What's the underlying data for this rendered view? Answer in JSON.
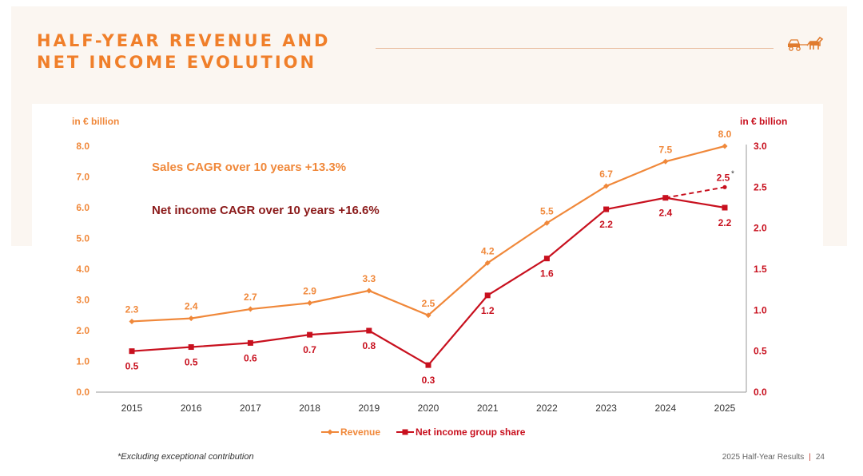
{
  "slide": {
    "title_line1": "HALF-YEAR REVENUE AND",
    "title_line2": "NET INCOME EVOLUTION",
    "footnote": "*Excluding exceptional contribution",
    "footer_text": "2025 Half-Year Results",
    "footer_separator": "|",
    "page_number": "24"
  },
  "colors": {
    "revenue": "#f0883a",
    "net_income": "#c8101e",
    "title": "#f07f2a",
    "cagr_net": "#8b1a1a"
  },
  "chart_data": {
    "type": "line",
    "categories": [
      "2015",
      "2016",
      "2017",
      "2018",
      "2019",
      "2020",
      "2021",
      "2022",
      "2023",
      "2024",
      "2025"
    ],
    "y_left_label": "in € billion",
    "y_right_label": "in € billion",
    "y_left_range": [
      0,
      8
    ],
    "y_left_ticks": [
      "0.0",
      "1.0",
      "2.0",
      "3.0",
      "4.0",
      "5.0",
      "6.0",
      "7.0",
      "8.0"
    ],
    "y_right_range": [
      0,
      3
    ],
    "y_right_ticks": [
      "0.0",
      "0.5",
      "1.0",
      "1.5",
      "2.0",
      "2.5",
      "3.0"
    ],
    "annotations": {
      "sales_cagr": "Sales CAGR over 10 years +13.3%",
      "net_income_cagr": "Net income CAGR over 10 years +16.6%"
    },
    "series": [
      {
        "name": "Revenue",
        "axis": "left",
        "marker": "diamond",
        "values": [
          2.3,
          2.4,
          2.7,
          2.9,
          3.3,
          2.5,
          4.2,
          5.5,
          6.7,
          7.5,
          8.0
        ],
        "labels": [
          "2.3",
          "2.4",
          "2.7",
          "2.9",
          "3.3",
          "2.5",
          "4.2",
          "5.5",
          "6.7",
          "7.5",
          "8.0"
        ]
      },
      {
        "name": "Net income group share",
        "axis": "right",
        "marker": "square",
        "values": [
          0.5,
          0.55,
          0.6,
          0.7,
          0.75,
          0.33,
          1.18,
          1.63,
          2.23,
          2.37,
          2.25
        ],
        "labels": [
          "0.5",
          "0.5",
          "0.6",
          "0.7",
          "0.8",
          "0.3",
          "1.2",
          "1.6",
          "2.2",
          "2.4",
          "2.2"
        ]
      }
    ],
    "excluding_exceptional": {
      "from_category": "2024",
      "to_category": "2025",
      "from_value": 2.37,
      "value": 2.5,
      "label": "2.5",
      "marker_note": "*",
      "style": "dashed"
    }
  }
}
